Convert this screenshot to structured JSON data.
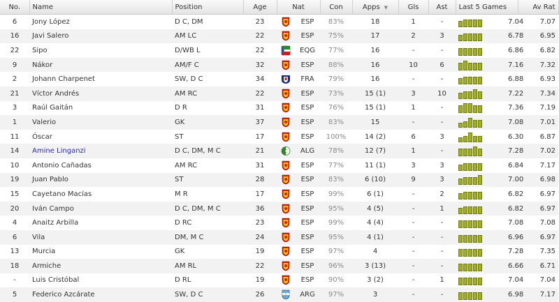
{
  "columns": {
    "no": "No.",
    "name": "Name",
    "position": "Position",
    "age": "Age",
    "nat": "Nat",
    "con": "Con",
    "apps": "Apps",
    "gls": "Gls",
    "ast": "Ast",
    "last5": "Last 5 Games",
    "avrat": "Av Rat"
  },
  "players": [
    {
      "no": "6",
      "name": "Jony López",
      "pos": "D C, DM",
      "age": "23",
      "nat": "ESP",
      "flag": "spain-crest",
      "con": "83%",
      "apps": "18",
      "gls": "1",
      "ast": "-",
      "last": "7.04",
      "av": "7.07",
      "form": [
        0.6,
        0.75,
        0.75,
        0.75,
        0.75
      ]
    },
    {
      "no": "16",
      "name": "Javi Salero",
      "pos": "AM LC",
      "age": "22",
      "nat": "ESP",
      "flag": "spain-crest",
      "con": "75%",
      "apps": "17",
      "gls": "2",
      "ast": "3",
      "last": "6.78",
      "av": "6.95",
      "form": [
        0.6,
        0.75,
        0.75,
        0.75,
        0.75
      ]
    },
    {
      "no": "22",
      "name": "Sipo",
      "pos": "D/WB L",
      "age": "22",
      "nat": "EQG",
      "flag": "eq-guinea-crest",
      "con": "77%",
      "apps": "16",
      "gls": "-",
      "ast": "-",
      "last": "6.86",
      "av": "6.82",
      "form": [
        0.75,
        0.75,
        0.75,
        0.75,
        0.75
      ]
    },
    {
      "no": "9",
      "name": "Nákor",
      "pos": "AM/F C",
      "age": "32",
      "nat": "ESP",
      "flag": "spain-crest",
      "con": "88%",
      "apps": "16",
      "gls": "10",
      "ast": "6",
      "last": "7.16",
      "av": "7.32",
      "form": [
        0.75,
        0.9,
        0.75,
        0.75,
        0.75
      ]
    },
    {
      "no": "2",
      "name": "Johann Charpenet",
      "pos": "SW, D C",
      "age": "34",
      "nat": "FRA",
      "flag": "france-crest",
      "con": "79%",
      "apps": "16",
      "gls": "-",
      "ast": "-",
      "last": "6.88",
      "av": "6.93",
      "form": [
        0.6,
        0.75,
        0.75,
        0.75,
        0.75
      ]
    },
    {
      "no": "21",
      "name": "Víctor Andrés",
      "pos": "AM RC",
      "age": "22",
      "nat": "ESP",
      "flag": "spain-crest",
      "con": "73%",
      "apps": "15 (1)",
      "gls": "3",
      "ast": "10",
      "last": "7.22",
      "av": "7.34",
      "form": [
        0.6,
        0.75,
        0.75,
        0.9,
        0.75
      ]
    },
    {
      "no": "3",
      "name": "Raúl Gaitán",
      "pos": "D R",
      "age": "31",
      "nat": "ESP",
      "flag": "spain-crest",
      "con": "76%",
      "apps": "15 (1)",
      "gls": "1",
      "ast": "-",
      "last": "7.36",
      "av": "7.19",
      "form": [
        0.75,
        0.9,
        0.9,
        0.75,
        0.75
      ]
    },
    {
      "no": "1",
      "name": "Valerio",
      "pos": "GK",
      "age": "37",
      "nat": "ESP",
      "flag": "spain-crest",
      "con": "83%",
      "apps": "15",
      "gls": "-",
      "ast": "-",
      "last": "7.08",
      "av": "7.01",
      "form": [
        0.45,
        0.6,
        0.9,
        0.75,
        0.75
      ]
    },
    {
      "no": "11",
      "name": "Óscar",
      "pos": "ST",
      "age": "17",
      "nat": "ESP",
      "flag": "spain-crest",
      "con": "100%",
      "apps": "14 (2)",
      "gls": "6",
      "ast": "3",
      "last": "6.30",
      "av": "6.87",
      "form": [
        0.45,
        0.6,
        0.9,
        0.6,
        0.6
      ]
    },
    {
      "no": "14",
      "name": "Amine Linganzi",
      "pos": "D C, DM, M C",
      "age": "21",
      "nat": "ALG",
      "flag": "algeria-crest",
      "con": "78%",
      "apps": "12 (7)",
      "gls": "1",
      "ast": "-",
      "last": "7.28",
      "av": "7.02",
      "form": [
        0.75,
        0.75,
        0.75,
        0.9,
        0.75
      ],
      "link": true
    },
    {
      "no": "10",
      "name": "Antonio Cañadas",
      "pos": "AM RC",
      "age": "31",
      "nat": "ESP",
      "flag": "spain-crest",
      "con": "77%",
      "apps": "11 (1)",
      "gls": "3",
      "ast": "3",
      "last": "6.84",
      "av": "7.17",
      "form": [
        0.6,
        0.75,
        0.75,
        0.75,
        0.75
      ]
    },
    {
      "no": "19",
      "name": "Juan Pablo",
      "pos": "ST",
      "age": "28",
      "nat": "ESP",
      "flag": "spain-crest",
      "con": "83%",
      "apps": "6 (10)",
      "gls": "9",
      "ast": "3",
      "last": "7.00",
      "av": "6.98",
      "form": [
        0.6,
        0.75,
        0.75,
        0.75,
        0.9
      ]
    },
    {
      "no": "15",
      "name": "Cayetano Macías",
      "pos": "M R",
      "age": "17",
      "nat": "ESP",
      "flag": "spain-crest",
      "con": "99%",
      "apps": "6 (1)",
      "gls": "-",
      "ast": "2",
      "last": "6.82",
      "av": "6.97",
      "form": [
        0.6,
        0.75,
        0.75,
        0.75,
        0.75
      ]
    },
    {
      "no": "20",
      "name": "Iván Campo",
      "pos": "D C, DM, M C",
      "age": "36",
      "nat": "ESP",
      "flag": "spain-crest",
      "con": "95%",
      "apps": "4 (5)",
      "gls": "-",
      "ast": "1",
      "last": "6.82",
      "av": "6.97",
      "form": [
        0.6,
        0.75,
        0.75,
        0.75,
        0.75
      ]
    },
    {
      "no": "4",
      "name": "Anaitz Arbilla",
      "pos": "D RC",
      "age": "23",
      "nat": "ESP",
      "flag": "spain-crest",
      "con": "99%",
      "apps": "4 (4)",
      "gls": "-",
      "ast": "-",
      "last": "7.08",
      "av": "7.08",
      "form": [
        0.75,
        0.75,
        0.75,
        0.75,
        0.75
      ]
    },
    {
      "no": "6",
      "name": "Vila",
      "pos": "DM, M C",
      "age": "24",
      "nat": "ESP",
      "flag": "spain-crest",
      "con": "95%",
      "apps": "4 (1)",
      "gls": "-",
      "ast": "-",
      "last": "6.96",
      "av": "6.97",
      "form": [
        0.75,
        0.75,
        0.75,
        0.75,
        0.75
      ]
    },
    {
      "no": "13",
      "name": "Murcia",
      "pos": "GK",
      "age": "19",
      "nat": "ESP",
      "flag": "spain-crest",
      "con": "97%",
      "apps": "4",
      "gls": "-",
      "ast": "-",
      "last": "7.28",
      "av": "7.35",
      "form": [
        0.75,
        0.75,
        0.75,
        0.75,
        0.75
      ]
    },
    {
      "no": "18",
      "name": "Armiche",
      "pos": "AM RL",
      "age": "22",
      "nat": "ESP",
      "flag": "spain-crest",
      "con": "96%",
      "apps": "3 (13)",
      "gls": "-",
      "ast": "-",
      "last": "6.66",
      "av": "6.71",
      "form": [
        0.75,
        0.75,
        0.75,
        0.75,
        0.75
      ]
    },
    {
      "no": "-",
      "name": "Luis Cristóbal",
      "pos": "D RL",
      "age": "19",
      "nat": "ESP",
      "flag": "spain-crest",
      "con": "90%",
      "apps": "3 (2)",
      "gls": "-",
      "ast": "1",
      "last": "7.04",
      "av": "7.04",
      "form": [
        0.75,
        0.75,
        0.75,
        0.75,
        0.75
      ]
    },
    {
      "no": "5",
      "name": "Federico Azcárate",
      "pos": "SW, D C",
      "age": "26",
      "nat": "ARG",
      "flag": "argentina-crest",
      "con": "97%",
      "apps": "3",
      "gls": "-",
      "ast": "-",
      "last": "6.98",
      "av": "7.17",
      "form": [
        0.75,
        0.75,
        0.75,
        0.75,
        0.75
      ]
    }
  ],
  "colors": {
    "form_bar": "#a0b020",
    "form_bar_border": "#707a10",
    "link": "#2a2aa8",
    "muted": "#8a8a8a"
  }
}
